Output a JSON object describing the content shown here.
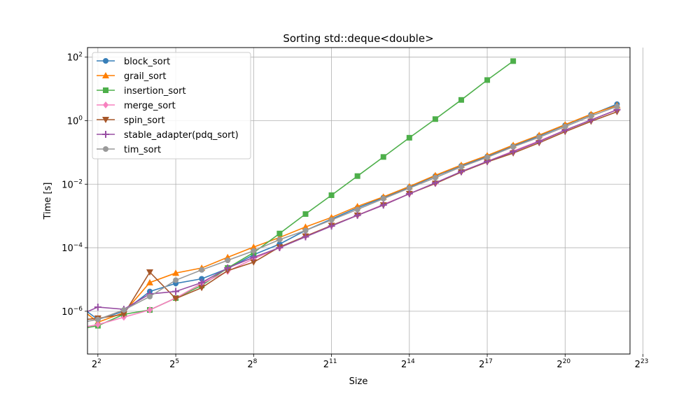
{
  "chart_data": {
    "type": "line",
    "title": "Sorting std::deque<double>",
    "xlabel": "Size",
    "ylabel": "Time [s]",
    "xscale": "log2",
    "yscale": "log10",
    "xlim": [
      1.6,
      22.5
    ],
    "ylim": [
      4.5e-08,
      200
    ],
    "grid": true,
    "legend_position": "top-left",
    "x_tick_labels": [
      {
        "base": "2",
        "exp": "2",
        "value": 2
      },
      {
        "base": "2",
        "exp": "5",
        "value": 5
      },
      {
        "base": "2",
        "exp": "8",
        "value": 8
      },
      {
        "base": "2",
        "exp": "11",
        "value": 11
      },
      {
        "base": "2",
        "exp": "14",
        "value": 14
      },
      {
        "base": "2",
        "exp": "17",
        "value": 17
      },
      {
        "base": "2",
        "exp": "20",
        "value": 20
      },
      {
        "base": "2",
        "exp": "23",
        "value": 23
      }
    ],
    "y_tick_labels": [
      {
        "base": "10",
        "exp": "−6",
        "value": -6
      },
      {
        "base": "10",
        "exp": "−4",
        "value": -4
      },
      {
        "base": "10",
        "exp": "−2",
        "value": -2
      },
      {
        "base": "10",
        "exp": "0",
        "value": 0
      },
      {
        "base": "10",
        "exp": "2",
        "value": 2
      }
    ],
    "series": [
      {
        "name": "block_sort",
        "color": "#377eb8",
        "marker": "circle",
        "x": [
          1,
          2,
          3,
          4,
          5,
          6,
          7,
          8,
          9,
          10,
          11,
          12,
          13,
          14,
          15,
          16,
          17,
          18,
          19,
          20,
          21,
          22
        ],
        "y": [
          2.2e-06,
          5.5e-07,
          1e-06,
          4.2e-06,
          7.5e-06,
          1.05e-05,
          2.2e-05,
          6e-05,
          0.00013,
          0.00035,
          0.0008,
          0.0018,
          0.0038,
          0.008,
          0.018,
          0.038,
          0.075,
          0.16,
          0.33,
          0.72,
          1.55,
          3.3
        ]
      },
      {
        "name": "grail_sort",
        "color": "#ff7f00",
        "marker": "triangle-up",
        "x": [
          1,
          2,
          3,
          4,
          5,
          6,
          7,
          8,
          9,
          10,
          11,
          12,
          13,
          14,
          15,
          16,
          17,
          18,
          19,
          20,
          21,
          22
        ],
        "y": [
          2e-06,
          4.5e-07,
          9e-07,
          8e-06,
          1.6e-05,
          2.3e-05,
          5e-05,
          0.000105,
          0.00021,
          0.00045,
          0.0009,
          0.002,
          0.004,
          0.0085,
          0.019,
          0.04,
          0.08,
          0.17,
          0.35,
          0.75,
          1.6,
          3.0
        ]
      },
      {
        "name": "insertion_sort",
        "color": "#4daf4a",
        "marker": "square",
        "x": [
          1,
          2,
          3,
          4,
          5,
          6,
          7,
          8,
          9,
          10,
          11,
          12,
          13,
          14,
          15,
          16,
          17,
          18
        ],
        "y": [
          2.5e-07,
          3.5e-07,
          8e-07,
          1.1e-06,
          2.6e-06,
          6.5e-06,
          2.3e-05,
          7e-05,
          0.00028,
          0.00115,
          0.0045,
          0.018,
          0.072,
          0.29,
          1.12,
          4.5,
          19.0,
          75.0
        ]
      },
      {
        "name": "merge_sort",
        "color": "#f781bf",
        "marker": "diamond",
        "x": [
          1,
          2,
          3,
          4,
          5,
          6,
          7,
          8,
          9,
          10,
          11,
          12,
          13,
          14,
          15,
          16,
          17,
          18,
          19,
          20,
          21,
          22
        ],
        "y": [
          2.7e-07,
          3.8e-07,
          6.5e-07,
          1.1e-06,
          2.6e-06,
          7.5e-06,
          1.8e-05,
          4.5e-05,
          0.0001,
          0.00023,
          0.0005,
          0.00105,
          0.0023,
          0.005,
          0.0105,
          0.025,
          0.052,
          0.11,
          0.23,
          0.5,
          1.05,
          2.2
        ]
      },
      {
        "name": "spin_sort",
        "color": "#a65628",
        "marker": "triangle-down",
        "x": [
          1,
          2,
          3,
          4,
          5,
          6,
          7,
          8,
          9,
          10,
          11,
          12,
          13,
          14,
          15,
          16,
          17,
          18,
          19,
          20,
          21,
          22
        ],
        "y": [
          5e-07,
          6e-07,
          8e-07,
          1.7e-05,
          2.5e-06,
          5.5e-06,
          1.9e-05,
          3.5e-05,
          0.000105,
          0.00023,
          0.0005,
          0.00105,
          0.0022,
          0.005,
          0.0105,
          0.024,
          0.05,
          0.095,
          0.2,
          0.45,
          0.95,
          1.9
        ]
      },
      {
        "name": "stable_adapter(pdq_sort)",
        "color": "#984ea3",
        "marker": "plus",
        "x": [
          1,
          2,
          3,
          4,
          5,
          6,
          7,
          8,
          9,
          10,
          11,
          12,
          13,
          14,
          15,
          16,
          17,
          18,
          19,
          20,
          21,
          22
        ],
        "y": [
          6e-07,
          1.35e-06,
          1.15e-06,
          3.5e-06,
          4.2e-06,
          8e-06,
          2.3e-05,
          5e-05,
          0.0001,
          0.00022,
          0.00048,
          0.00105,
          0.0022,
          0.005,
          0.011,
          0.025,
          0.052,
          0.105,
          0.22,
          0.5,
          1.05,
          2.2
        ]
      },
      {
        "name": "tim_sort",
        "color": "#999999",
        "marker": "circle",
        "x": [
          1,
          2,
          3,
          4,
          5,
          6,
          7,
          8,
          9,
          10,
          11,
          12,
          13,
          14,
          15,
          16,
          17,
          18,
          19,
          20,
          21,
          22
        ],
        "y": [
          4e-07,
          5.5e-07,
          1.1e-06,
          2.9e-06,
          9.5e-06,
          2e-05,
          4e-05,
          8e-05,
          0.00018,
          0.00035,
          0.00075,
          0.0016,
          0.0035,
          0.0075,
          0.016,
          0.035,
          0.07,
          0.15,
          0.3,
          0.65,
          1.4,
          2.8
        ]
      }
    ]
  }
}
